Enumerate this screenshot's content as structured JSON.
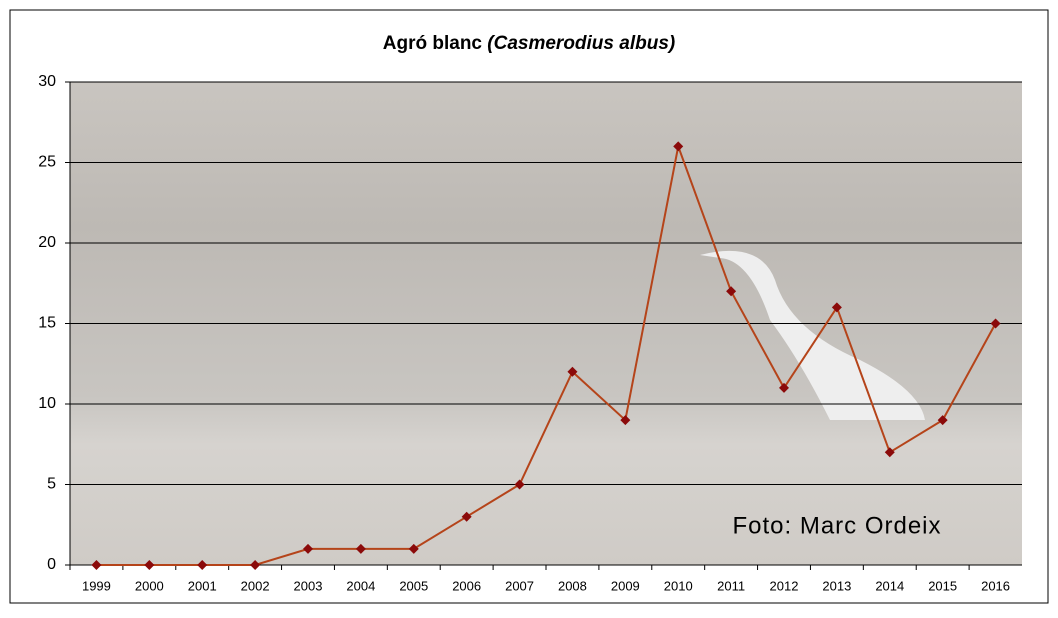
{
  "chart_data": {
    "type": "line",
    "title": "Agró blanc",
    "subtitle": "(Casmerodius albus)",
    "annotation": "Foto: Marc Ordeix",
    "categories": [
      "1999",
      "2000",
      "2001",
      "2002",
      "2003",
      "2004",
      "2005",
      "2006",
      "2007",
      "2008",
      "2009",
      "2010",
      "2011",
      "2012",
      "2013",
      "2014",
      "2015",
      "2016"
    ],
    "values": [
      0,
      0,
      0,
      0,
      1,
      1,
      1,
      3,
      5,
      12,
      9,
      26,
      17,
      11,
      16,
      7,
      9,
      15
    ],
    "color": "#b5441a",
    "marker_color": "#8b0a0a",
    "ylim": [
      0,
      30
    ],
    "yticks": [
      0,
      5,
      10,
      15,
      20,
      25,
      30
    ],
    "grid": true
  }
}
